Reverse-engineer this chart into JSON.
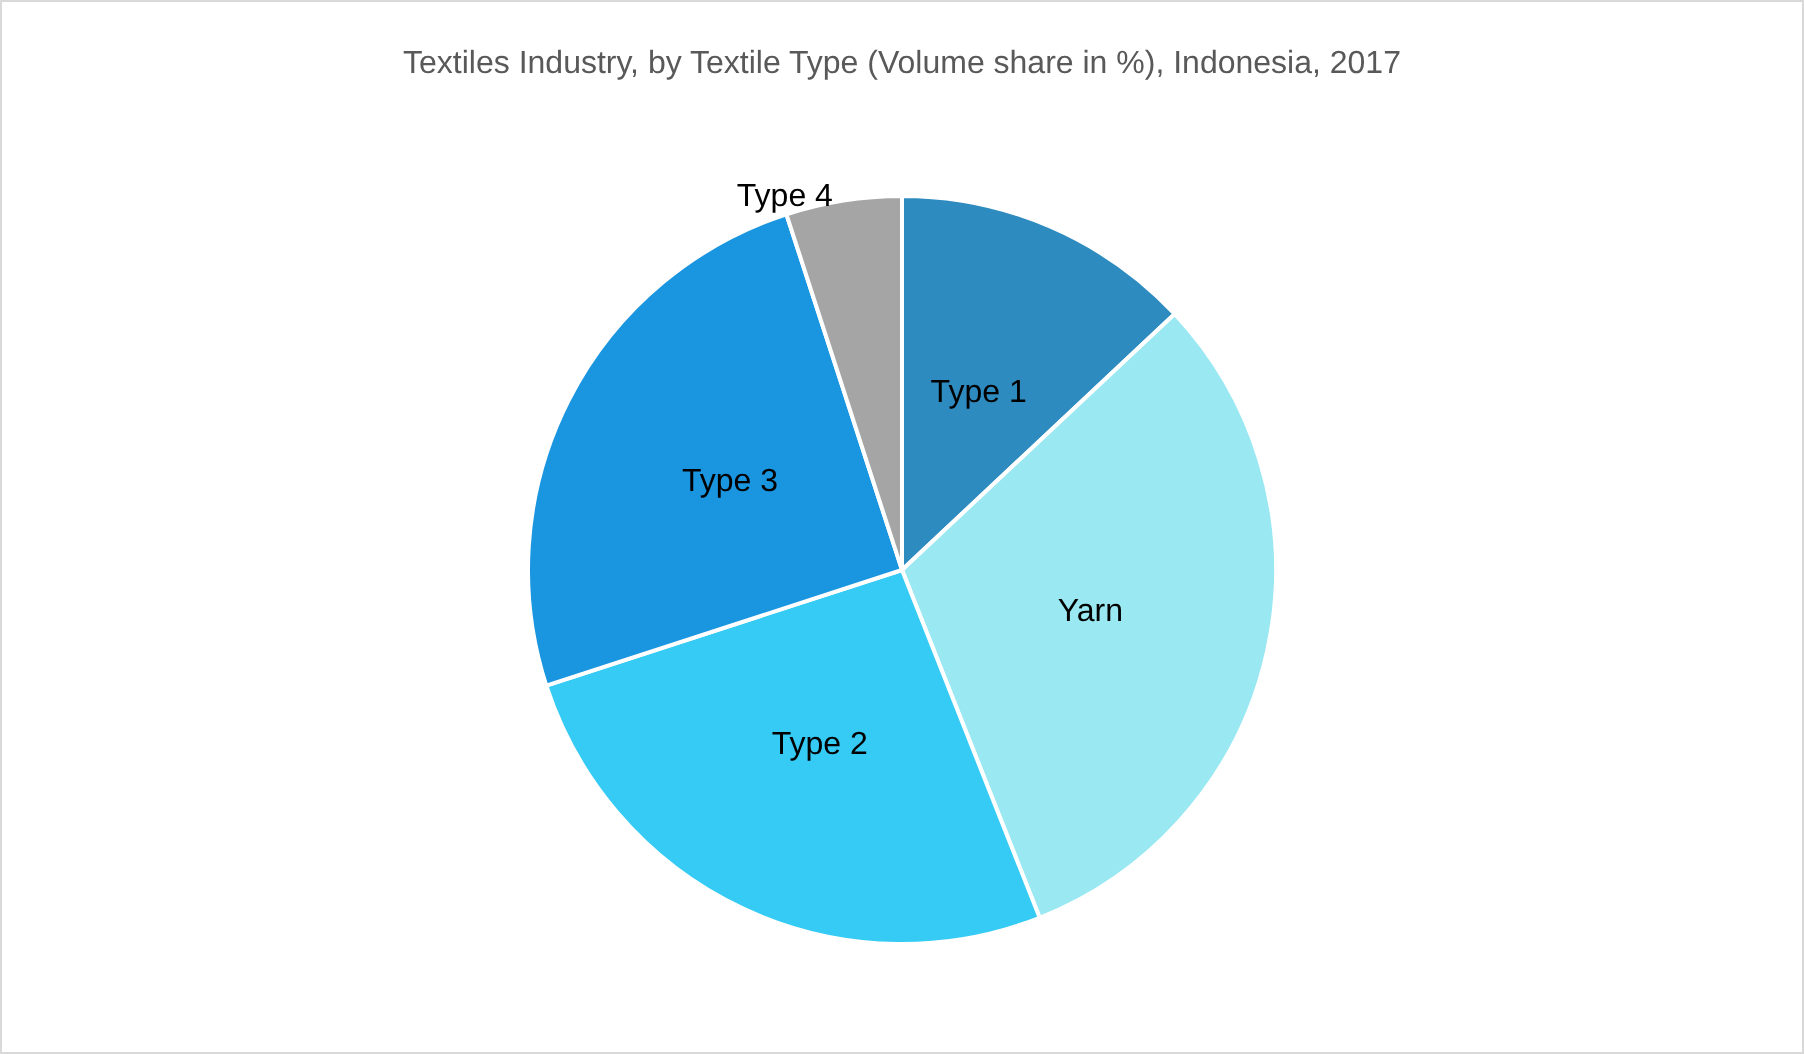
{
  "chart_data": {
    "type": "pie",
    "title": "Textiles Industry, by Textile Type (Volume share in %), Indonesia, 2017",
    "categories": [
      "Type 1",
      "Yarn",
      "Type 2",
      "Type 3",
      "Type 4"
    ],
    "values": [
      13,
      31,
      26,
      25,
      5
    ],
    "colors": [
      "#2e8bc0",
      "#99e8f2",
      "#35cbf5",
      "#1a95e0",
      "#a5a5a5"
    ],
    "legend": false
  }
}
